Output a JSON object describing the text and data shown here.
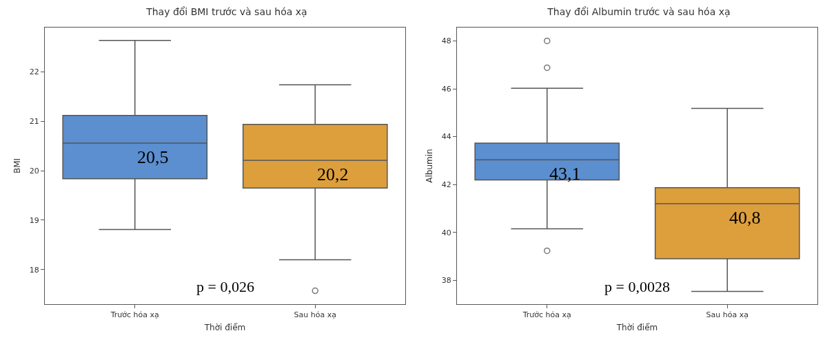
{
  "chart_data": [
    {
      "type": "box",
      "title": "Thay đổi BMI trước và sau hóa xạ",
      "xlabel": "Thời điểm",
      "ylabel": "BMI",
      "categories": [
        "Trước hóa xạ",
        "Sau hóa xạ"
      ],
      "colors": [
        "#5b8fcf",
        "#dd9f3c"
      ],
      "boxes": [
        {
          "low": 18.81,
          "q1": 19.84,
          "median": 20.56,
          "q3": 21.12,
          "high": 22.64
        },
        {
          "low": 18.2,
          "q1": 19.65,
          "median": 20.21,
          "q3": 20.94,
          "high": 21.74,
          "outliers": [
            17.57
          ]
        }
      ],
      "ylim": [
        17.3,
        22.9
      ],
      "yticks": [
        18,
        19,
        20,
        21,
        22
      ],
      "annotations": [
        "20,5",
        "20,2",
        "p = 0,026"
      ]
    },
    {
      "type": "box",
      "title": "Thay đổi Albumin trước và sau hóa xạ",
      "xlabel": "Thời điểm",
      "ylabel": "Albumin",
      "categories": [
        "Trước hóa xạ",
        "Sau hóa xạ"
      ],
      "colors": [
        "#5b8fcf",
        "#dd9f3c"
      ],
      "boxes": [
        {
          "low": 40.15,
          "q1": 42.19,
          "median": 43.03,
          "q3": 43.73,
          "high": 46.02,
          "outliers": [
            48.0,
            46.88,
            39.23
          ]
        },
        {
          "low": 37.53,
          "q1": 38.9,
          "median": 41.2,
          "q3": 41.87,
          "high": 45.18
        }
      ],
      "ylim": [
        37.0,
        48.56
      ],
      "yticks": [
        38,
        40,
        42,
        44,
        46,
        48
      ],
      "annotations": [
        "43,1",
        "40,8",
        "p = 0,0028"
      ]
    }
  ]
}
